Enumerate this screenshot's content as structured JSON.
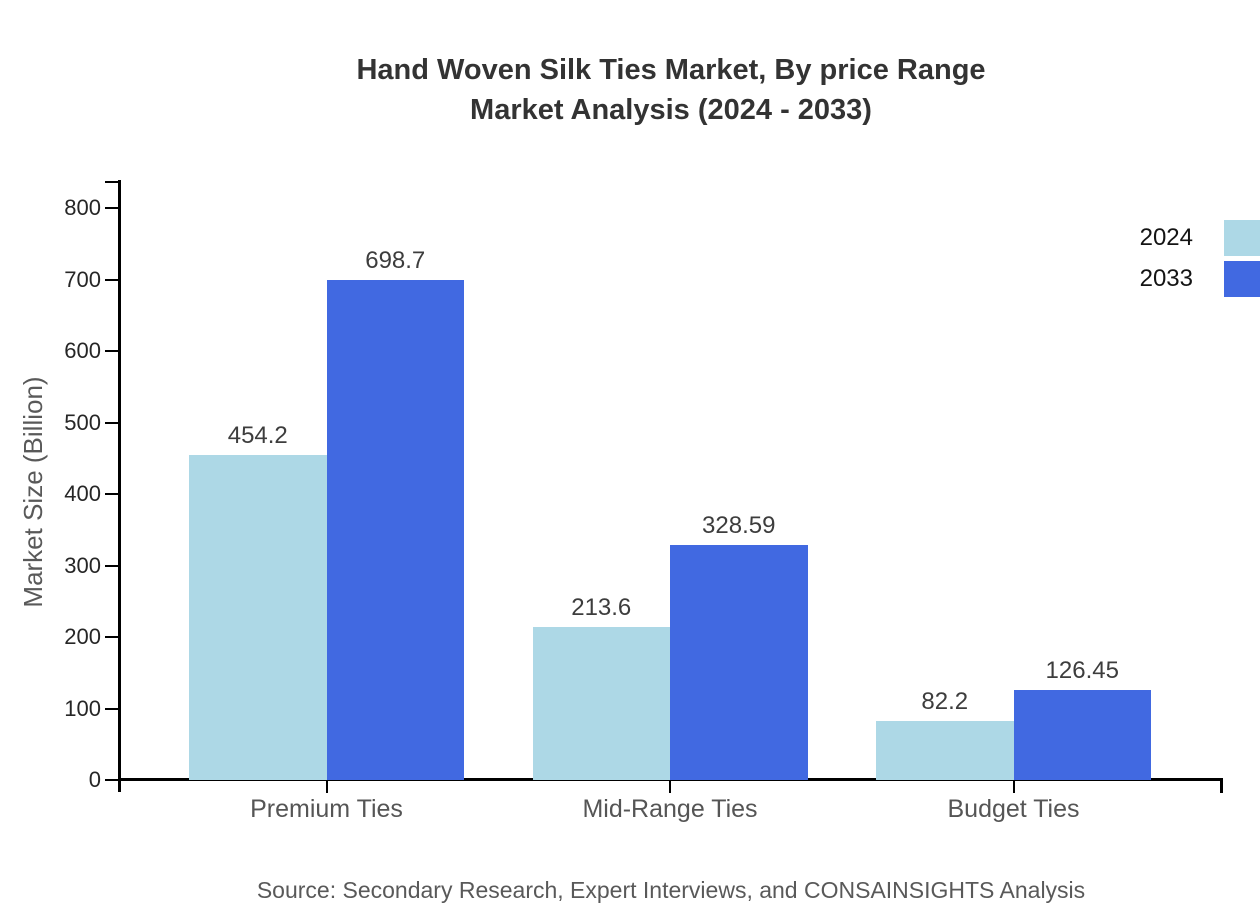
{
  "chart_data": {
    "type": "bar",
    "title": "Hand Woven Silk Ties Market, By price Range",
    "subtitle": "Market Analysis (2024 - 2033)",
    "categories": [
      "Premium Ties",
      "Mid-Range Ties",
      "Budget Ties"
    ],
    "series": [
      {
        "name": "2024",
        "color": "#ADD8E6",
        "values": [
          454.2,
          213.6,
          82.2
        ]
      },
      {
        "name": "2033",
        "color": "#4169E1",
        "values": [
          698.7,
          328.59,
          126.45
        ]
      }
    ],
    "xlabel": "",
    "ylabel": "Market Size (Billion)",
    "ylim": [
      0,
      800
    ],
    "yticks": [
      0,
      100,
      200,
      300,
      400,
      500,
      600,
      700,
      800
    ],
    "grid": false,
    "legend_position": "top-right",
    "source": "Source: Secondary Research, Expert Interviews, and CONSAINSIGHTS Analysis",
    "colors": {
      "series_2024": "#ADD8E6",
      "series_2033": "#4169E1",
      "axis": "#000000",
      "title_text": "#333333",
      "tick_text": "#262626",
      "category_text": "#555555",
      "muted_text": "#595959",
      "value_text": "#3d3d3d",
      "background": "#ffffff"
    }
  }
}
